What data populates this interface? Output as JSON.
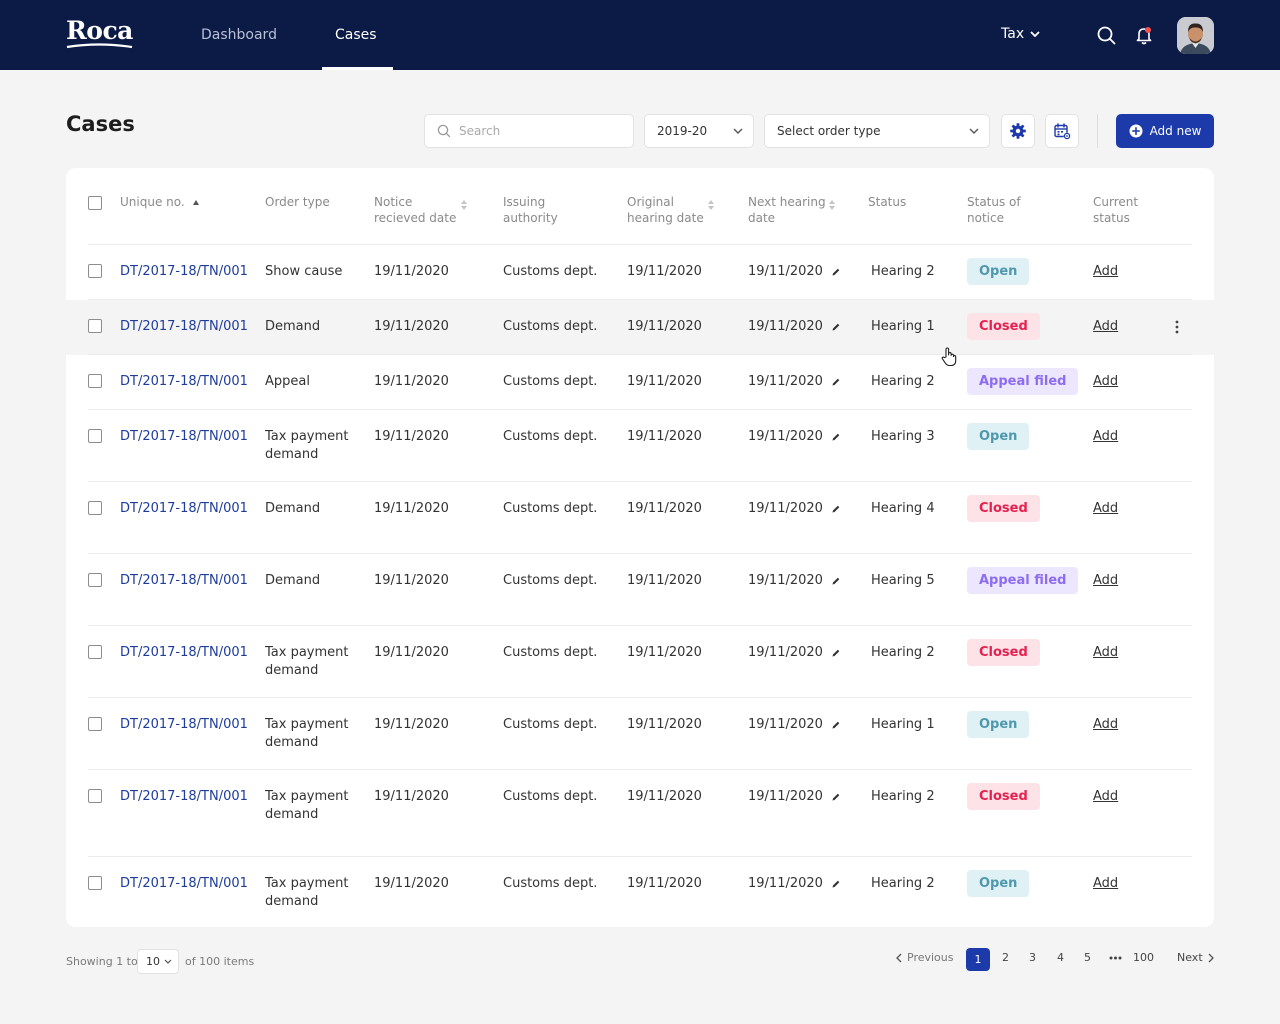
{
  "app": {
    "brand": "Roca",
    "nav": [
      {
        "label": "Dashboard",
        "active": false
      },
      {
        "label": "Cases",
        "active": true
      }
    ],
    "module": "Tax"
  },
  "page": {
    "title": "Cases",
    "search_placeholder": "Search",
    "year": "2019-20",
    "order_type_placeholder": "Select order type",
    "add_label": "Add new"
  },
  "table": {
    "headers": {
      "id": "Unique no.",
      "order": "Order type",
      "notice": "Notice recieved date",
      "auth": "Issuing authority",
      "orig": "Original hearing date",
      "next": "Next hearing date",
      "status": "Status",
      "notice_status": "Status of notice",
      "current": "Current status"
    },
    "rows": [
      {
        "id": "DT/2017-18/TN/001",
        "order": "Show cause",
        "notice": "19/11/2020",
        "auth": "Customs dept.",
        "orig": "19/11/2020",
        "next": "19/11/2020",
        "hearing": "Hearing 2",
        "status": "Open",
        "action": "Add"
      },
      {
        "id": "DT/2017-18/TN/001",
        "order": "Demand",
        "notice": "19/11/2020",
        "auth": "Customs dept.",
        "orig": "19/11/2020",
        "next": "19/11/2020",
        "hearing": "Hearing 1",
        "status": "Closed",
        "action": "Add"
      },
      {
        "id": "DT/2017-18/TN/001",
        "order": "Appeal",
        "notice": "19/11/2020",
        "auth": "Customs dept.",
        "orig": "19/11/2020",
        "next": "19/11/2020",
        "hearing": "Hearing 2",
        "status": "Appeal filed",
        "action": "Add"
      },
      {
        "id": "DT/2017-18/TN/001",
        "order": "Tax payment demand",
        "notice": "19/11/2020",
        "auth": "Customs dept.",
        "orig": "19/11/2020",
        "next": "19/11/2020",
        "hearing": "Hearing 3",
        "status": "Open",
        "action": "Add"
      },
      {
        "id": "DT/2017-18/TN/001",
        "order": "Demand",
        "notice": "19/11/2020",
        "auth": "Customs dept.",
        "orig": "19/11/2020",
        "next": "19/11/2020",
        "hearing": "Hearing 4",
        "status": "Closed",
        "action": "Add"
      },
      {
        "id": "DT/2017-18/TN/001",
        "order": "Demand",
        "notice": "19/11/2020",
        "auth": "Customs dept.",
        "orig": "19/11/2020",
        "next": "19/11/2020",
        "hearing": "Hearing 5",
        "status": "Appeal filed",
        "action": "Add"
      },
      {
        "id": "DT/2017-18/TN/001",
        "order": "Tax payment demand",
        "notice": "19/11/2020",
        "auth": "Customs dept.",
        "orig": "19/11/2020",
        "next": "19/11/2020",
        "hearing": "Hearing 2",
        "status": "Closed",
        "action": "Add"
      },
      {
        "id": "DT/2017-18/TN/001",
        "order": "Tax payment demand",
        "notice": "19/11/2020",
        "auth": "Customs dept.",
        "orig": "19/11/2020",
        "next": "19/11/2020",
        "hearing": "Hearing 1",
        "status": "Open",
        "action": "Add"
      },
      {
        "id": "DT/2017-18/TN/001",
        "order": "Tax payment demand",
        "notice": "19/11/2020",
        "auth": "Customs dept.",
        "orig": "19/11/2020",
        "next": "19/11/2020",
        "hearing": "Hearing 2",
        "status": "Closed",
        "action": "Add"
      },
      {
        "id": "DT/2017-18/TN/001",
        "order": "Tax payment demand",
        "notice": "19/11/2020",
        "auth": "Customs dept.",
        "orig": "19/11/2020",
        "next": "19/11/2020",
        "hearing": "Hearing 2",
        "status": "Open",
        "action": "Add"
      }
    ]
  },
  "footer": {
    "showing": "Showing 1 to",
    "per_page": "10",
    "of_items": "of 100 items",
    "prev": "Previous",
    "next": "Next",
    "pages": [
      "1",
      "2",
      "3",
      "4",
      "5"
    ],
    "last_page": "100"
  }
}
